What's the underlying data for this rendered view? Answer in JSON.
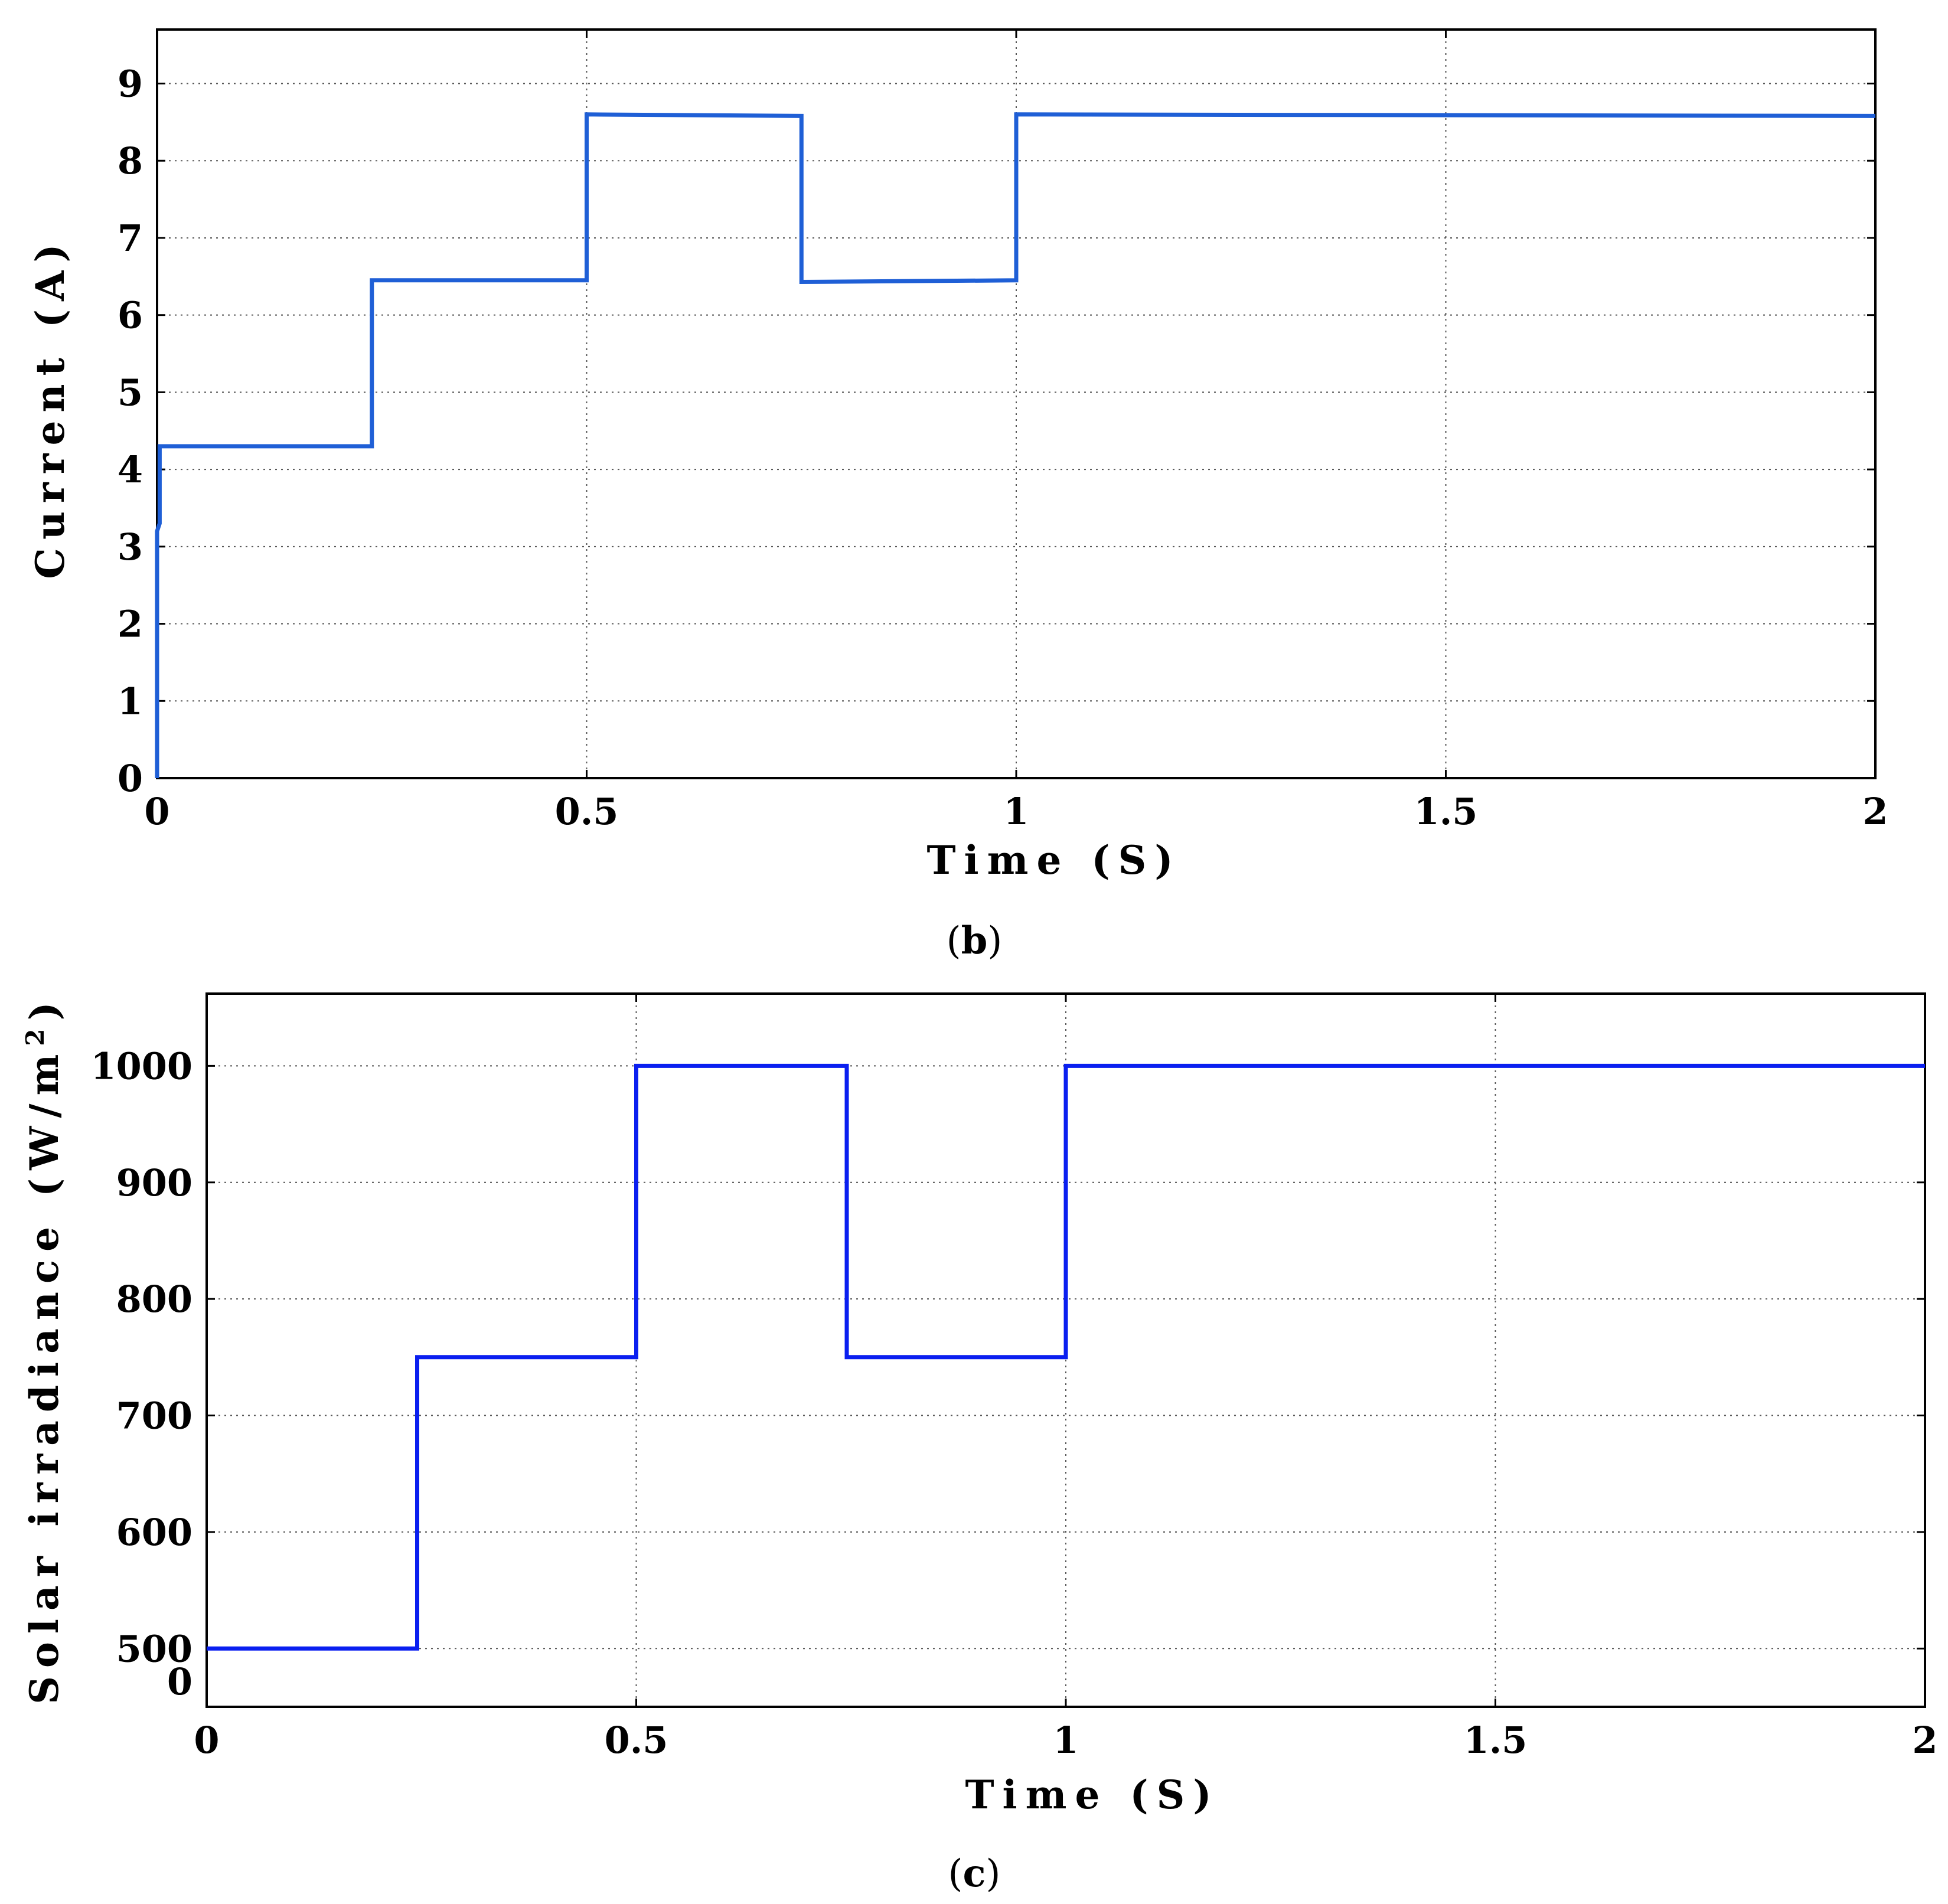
{
  "chart_data": [
    {
      "type": "line",
      "caption": "b",
      "xlabel": "Time (S)",
      "ylabel": "Current (A)",
      "xlim": [
        0,
        2
      ],
      "ylim": [
        0,
        9.7
      ],
      "xticks": [
        0,
        0.5,
        1,
        1.5,
        2
      ],
      "xtick_labels": [
        "0",
        "0.5",
        "1",
        "1.5",
        "2"
      ],
      "yticks": [
        0,
        1,
        2,
        3,
        4,
        5,
        6,
        7,
        8,
        9
      ],
      "ytick_labels": [
        "0",
        "1",
        "2",
        "3",
        "4",
        "5",
        "6",
        "7",
        "8",
        "9"
      ],
      "grid": true,
      "series": [
        {
          "color": "#1f5fd6",
          "x": [
            0,
            0.0,
            0.003,
            0.003,
            0.005,
            0.25,
            0.25,
            0.5,
            0.5,
            0.75,
            0.75,
            1.0,
            1.0,
            2.0
          ],
          "y": [
            0,
            3.2,
            3.3,
            4.3,
            4.3,
            4.3,
            6.45,
            6.45,
            8.6,
            8.58,
            6.43,
            6.45,
            8.6,
            8.58
          ]
        }
      ]
    },
    {
      "type": "line",
      "caption": "c",
      "xlabel": "Time (S)",
      "ylabel": "Solar irradiance (W/m",
      "ylabel_sup": "2",
      "ylabel_close": ")",
      "xlim": [
        0,
        2
      ],
      "ylim": [
        450,
        1062
      ],
      "xticks": [
        0,
        0.5,
        1,
        1.5,
        2
      ],
      "xtick_labels": [
        "0",
        "0.5",
        "1",
        "1.5",
        "2"
      ],
      "yticks": [
        500,
        600,
        700,
        800,
        900,
        1000
      ],
      "ytick_labels": [
        "500",
        "600",
        "700",
        "800",
        "900",
        "1000"
      ],
      "extra_tick_label": "0",
      "grid": true,
      "series": [
        {
          "color": "#0a1ff0",
          "x": [
            0,
            0.245,
            0.245,
            0.5,
            0.5,
            0.5,
            0.745,
            0.745,
            0.745,
            1.0,
            1.0,
            2.0
          ],
          "y": [
            500,
            500,
            750,
            750,
            875,
            1000,
            1000,
            875,
            750,
            750,
            1000,
            1000
          ]
        }
      ]
    }
  ]
}
